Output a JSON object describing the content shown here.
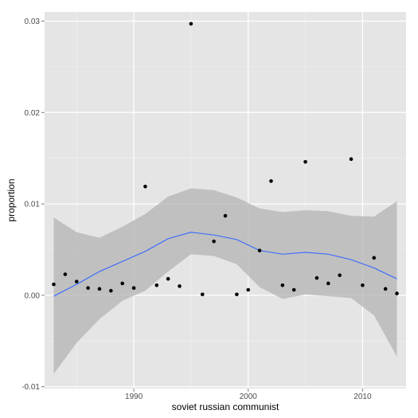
{
  "chart_data": {
    "type": "scatter",
    "title": "",
    "xlabel": "soviet russian communist",
    "ylabel": "proportion",
    "xlim": [
      1982.2,
      2013.8
    ],
    "ylim": [
      -0.0102,
      0.031
    ],
    "x_ticks": [
      1990,
      2000,
      2010
    ],
    "x_tick_labels": [
      "1990",
      "2000",
      "2010"
    ],
    "y_ticks": [
      -0.01,
      0.0,
      0.01,
      0.02,
      0.03
    ],
    "y_tick_labels": [
      "-0.01",
      "0.00",
      "0.01",
      "0.02",
      "0.03"
    ],
    "grid": true,
    "legend": "none",
    "series": [
      {
        "kind": "points",
        "x": [
          1983,
          1984,
          1985,
          1986,
          1987,
          1988,
          1989,
          1990,
          1991,
          1992,
          1993,
          1994,
          1995,
          1996,
          1997,
          1998,
          1999,
          2000,
          2001,
          2002,
          2003,
          2004,
          2005,
          2006,
          2007,
          2008,
          2009,
          2010,
          2011,
          2012,
          2013
        ],
        "y": [
          0.0012,
          0.0023,
          0.0015,
          0.0008,
          0.0007,
          0.0005,
          0.0013,
          0.0008,
          0.0119,
          0.0011,
          0.0018,
          0.001,
          0.0297,
          0.0001,
          0.0059,
          0.0087,
          0.0001,
          0.0006,
          0.0049,
          0.0125,
          0.0011,
          0.0006,
          0.0146,
          0.0019,
          0.0013,
          0.0022,
          0.0149,
          0.0011,
          0.0041,
          0.0007,
          0.0002
        ]
      },
      {
        "kind": "smooth",
        "x": [
          1983,
          1985,
          1987,
          1989,
          1991,
          1993,
          1995,
          1997,
          1999,
          2001,
          2003,
          2005,
          2007,
          2009,
          2011,
          2013
        ],
        "y": [
          -0.0001,
          0.0012,
          0.0026,
          0.0037,
          0.0048,
          0.0062,
          0.0069,
          0.0066,
          0.0061,
          0.0049,
          0.0045,
          0.0047,
          0.0045,
          0.0039,
          0.003,
          0.0018
        ],
        "lower": [
          -0.0086,
          -0.0052,
          -0.0026,
          -0.0006,
          0.0005,
          0.0026,
          0.0045,
          0.0043,
          0.0034,
          0.0009,
          -0.0004,
          0.0001,
          -0.0001,
          -0.0003,
          -0.0022,
          -0.0067
        ],
        "upper": [
          0.0085,
          0.0069,
          0.0063,
          0.0075,
          0.0089,
          0.0108,
          0.0117,
          0.0115,
          0.0107,
          0.0095,
          0.0091,
          0.0093,
          0.0092,
          0.0087,
          0.0086,
          0.0103
        ]
      }
    ]
  },
  "colors": {
    "panel": "#e5e5e5",
    "grid_major": "#ffffff",
    "grid_minor": "#f2f2f2",
    "point": "#000000",
    "smooth_line": "#3366ff",
    "ribbon": "#b3b3b3"
  }
}
